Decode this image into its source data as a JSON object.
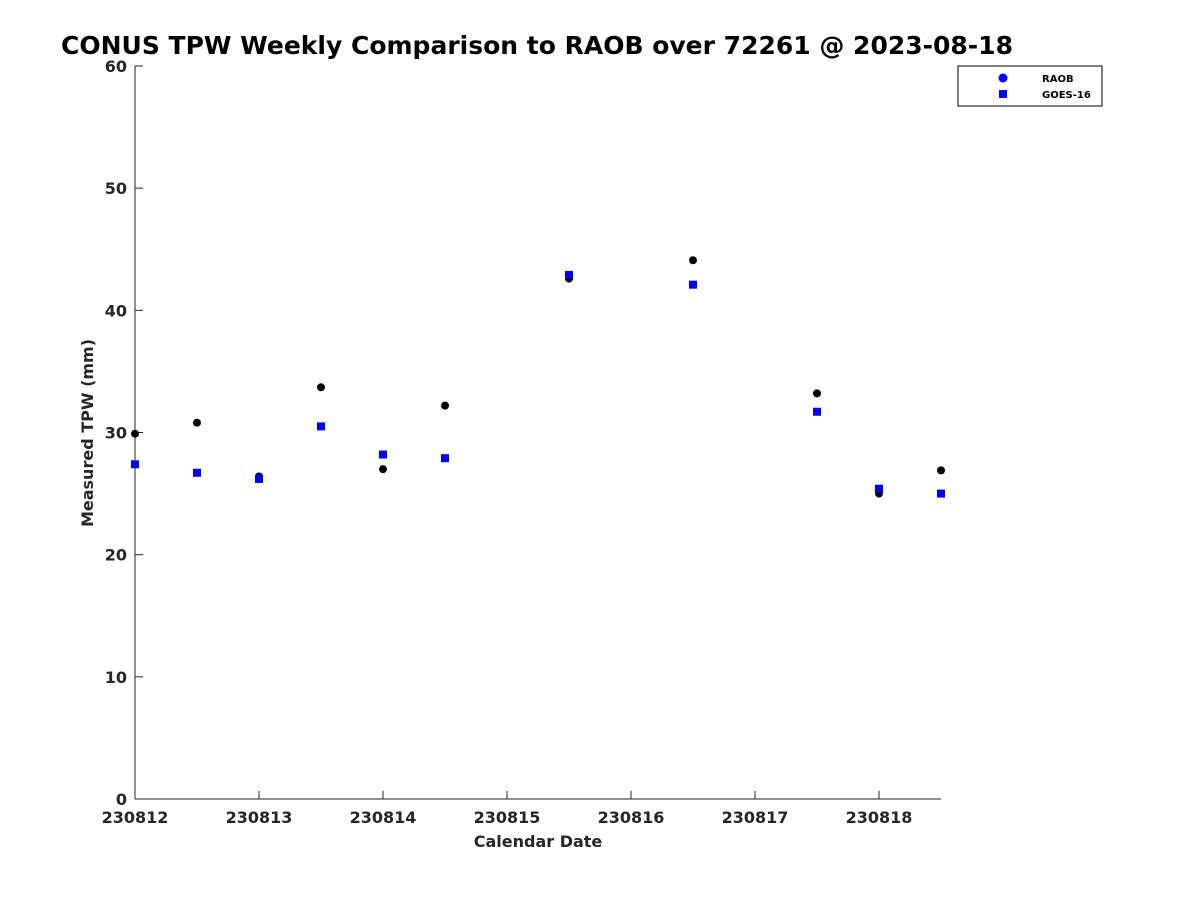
{
  "chart_data": {
    "type": "scatter",
    "title": "CONUS TPW Weekly Comparison to RAOB over 72261 @ 2023-08-18",
    "xlabel": "Calendar Date",
    "ylabel": "Measured TPW (mm)",
    "xlim": [
      "2023-08-12",
      "2023-08-18T12:00"
    ],
    "ylim": [
      0,
      60
    ],
    "x_ticks": [
      "2023-08-12",
      "2023-08-13",
      "2023-08-14",
      "2023-08-15",
      "2023-08-16",
      "2023-08-17",
      "2023-08-18"
    ],
    "x_tick_labels": [
      "230812",
      "230813",
      "230814",
      "230815",
      "230816",
      "230817",
      "230818"
    ],
    "y_ticks": [
      0,
      10,
      20,
      30,
      40,
      50,
      60
    ],
    "grid": false,
    "legend_position": "top-right",
    "series": [
      {
        "name": "RAOB",
        "marker": "circle",
        "color": "#000000",
        "x": [
          "2023-08-12T00:00",
          "2023-08-12T12:00",
          "2023-08-13T00:00",
          "2023-08-13T12:00",
          "2023-08-14T00:00",
          "2023-08-14T12:00",
          "2023-08-15T12:00",
          "2023-08-16T12:00",
          "2023-08-17T12:00",
          "2023-08-18T00:00",
          "2023-08-18T12:00"
        ],
        "y": [
          29.9,
          30.8,
          26.4,
          33.7,
          27.0,
          32.2,
          42.6,
          44.1,
          33.2,
          25.0,
          26.9
        ]
      },
      {
        "name": "GOES-16",
        "marker": "square",
        "color": "#0000ff",
        "x": [
          "2023-08-12T00:00",
          "2023-08-12T12:00",
          "2023-08-13T00:00",
          "2023-08-13T12:00",
          "2023-08-14T00:00",
          "2023-08-14T12:00",
          "2023-08-15T12:00",
          "2023-08-16T12:00",
          "2023-08-17T12:00",
          "2023-08-18T00:00",
          "2023-08-18T12:00"
        ],
        "y": [
          27.4,
          26.7,
          26.2,
          30.5,
          28.2,
          27.9,
          42.9,
          42.1,
          31.7,
          25.4,
          25.0
        ]
      }
    ],
    "legend_marker_color": "#0000ff"
  }
}
